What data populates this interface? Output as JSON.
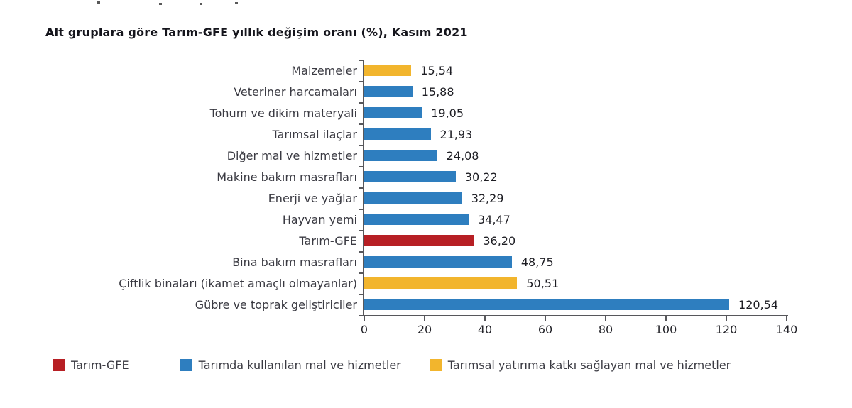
{
  "page": {
    "background": "#ffffff"
  },
  "chart_data": {
    "type": "bar",
    "orientation": "horizontal",
    "title": "Alt gruplara göre Tarım-GFE yıllık değişim oranı (%), Kasım 2021",
    "xlabel": "",
    "ylabel": "",
    "xlim": [
      0,
      140
    ],
    "x_ticks": [
      "0",
      "20",
      "40",
      "60",
      "80",
      "100",
      "120",
      "140"
    ],
    "grid": false,
    "decimal_separator": ",",
    "axis_color": "#57575b",
    "colors": {
      "gfe": "#B71F24",
      "goods": "#2E7EBF",
      "investment": "#F2B52D"
    },
    "bars": [
      {
        "label": "Malzemeler",
        "value": 15.54,
        "display": "15,54",
        "group": "investment"
      },
      {
        "label": "Veteriner harcamaları",
        "value": 15.88,
        "display": "15,88",
        "group": "goods"
      },
      {
        "label": "Tohum ve dikim materyali",
        "value": 19.05,
        "display": "19,05",
        "group": "goods"
      },
      {
        "label": "Tarımsal ilaçlar",
        "value": 21.93,
        "display": "21,93",
        "group": "goods"
      },
      {
        "label": "Diğer mal ve hizmetler",
        "value": 24.08,
        "display": "24,08",
        "group": "goods"
      },
      {
        "label": "Makine bakım masrafları",
        "value": 30.22,
        "display": "30,22",
        "group": "goods"
      },
      {
        "label": "Enerji ve yağlar",
        "value": 32.29,
        "display": "32,29",
        "group": "goods"
      },
      {
        "label": "Hayvan yemi",
        "value": 34.47,
        "display": "34,47",
        "group": "goods"
      },
      {
        "label": "Tarım-GFE",
        "value": 36.2,
        "display": "36,20",
        "group": "gfe"
      },
      {
        "label": "Bina bakım masrafları",
        "value": 48.75,
        "display": "48,75",
        "group": "goods"
      },
      {
        "label": "Çiftlik binaları (ikamet amaçlı olmayanlar)",
        "value": 50.51,
        "display": "50,51",
        "group": "investment"
      },
      {
        "label": "Gübre ve toprak geliştiriciler",
        "value": 120.54,
        "display": "120,54",
        "group": "goods"
      }
    ],
    "legend": {
      "position": "bottom",
      "items": [
        {
          "label": "Tarım-GFE",
          "group": "gfe"
        },
        {
          "label": "Tarımda kullanılan mal ve hizmetler",
          "group": "goods"
        },
        {
          "label": "Tarımsal yatırıma katkı sağlayan mal ve hizmetler",
          "group": "investment"
        }
      ]
    }
  }
}
